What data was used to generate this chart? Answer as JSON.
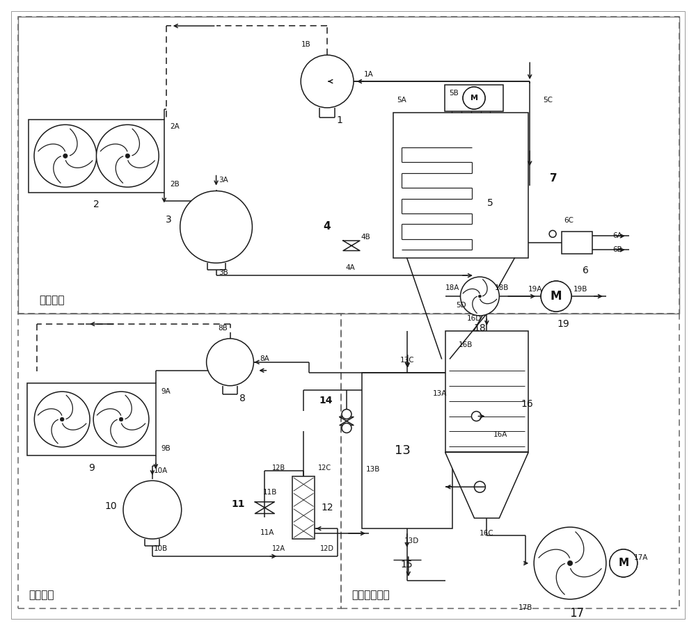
{
  "bg_color": "#ffffff",
  "lc": "#1a1a1a",
  "lw": 1.1,
  "module_ice": "制冰模块",
  "module_cool": "制冷模块",
  "module_snow": "气力送雪模块"
}
